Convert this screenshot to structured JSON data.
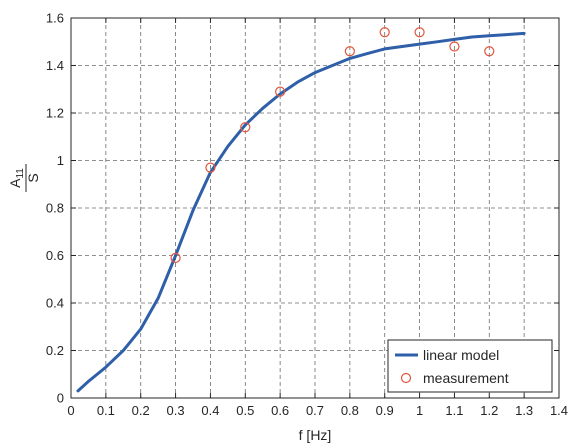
{
  "chart_data": {
    "type": "line",
    "xlabel": "f [Hz]",
    "ylabel": {
      "numerator": "A",
      "numerator_sub": "11",
      "denominator": "S"
    },
    "xlim": [
      0,
      1.4
    ],
    "ylim": [
      0,
      1.6
    ],
    "xticks": [
      0,
      0.1,
      0.2,
      0.3,
      0.4,
      0.5,
      0.6,
      0.7,
      0.8,
      0.9,
      1,
      1.1,
      1.2,
      1.3,
      1.4
    ],
    "xtick_labels": [
      "0",
      "0.1",
      "0.2",
      "0.3",
      "0.4",
      "0.5",
      "0.6",
      "0.7",
      "0.8",
      "0.9",
      "1",
      "1.1",
      "1.2",
      "1.3",
      "1.4"
    ],
    "yticks": [
      0,
      0.2,
      0.4,
      0.6,
      0.8,
      1,
      1.2,
      1.4,
      1.6
    ],
    "ytick_labels": [
      "0",
      "0.2",
      "0.4",
      "0.6",
      "0.8",
      "1",
      "1.2",
      "1.4",
      "1.6"
    ],
    "grid": true,
    "legend_position": "bottom-right",
    "series": [
      {
        "name": "linear model",
        "type": "line",
        "color": "#2e5fa8",
        "x": [
          0.02,
          0.05,
          0.1,
          0.15,
          0.2,
          0.25,
          0.3,
          0.35,
          0.4,
          0.45,
          0.5,
          0.55,
          0.6,
          0.65,
          0.7,
          0.75,
          0.8,
          0.85,
          0.9,
          0.95,
          1.0,
          1.05,
          1.1,
          1.15,
          1.2,
          1.25,
          1.3
        ],
        "y": [
          0.03,
          0.07,
          0.13,
          0.2,
          0.29,
          0.42,
          0.6,
          0.79,
          0.95,
          1.06,
          1.15,
          1.22,
          1.28,
          1.33,
          1.37,
          1.4,
          1.43,
          1.45,
          1.47,
          1.48,
          1.49,
          1.5,
          1.51,
          1.52,
          1.525,
          1.53,
          1.535
        ]
      },
      {
        "name": "measurement",
        "type": "scatter",
        "color": "#e0563c",
        "x": [
          0.3,
          0.4,
          0.5,
          0.6,
          0.8,
          0.9,
          1.0,
          1.1,
          1.2
        ],
        "y": [
          0.59,
          0.97,
          1.14,
          1.29,
          1.46,
          1.54,
          1.54,
          1.48,
          1.46
        ]
      }
    ]
  }
}
